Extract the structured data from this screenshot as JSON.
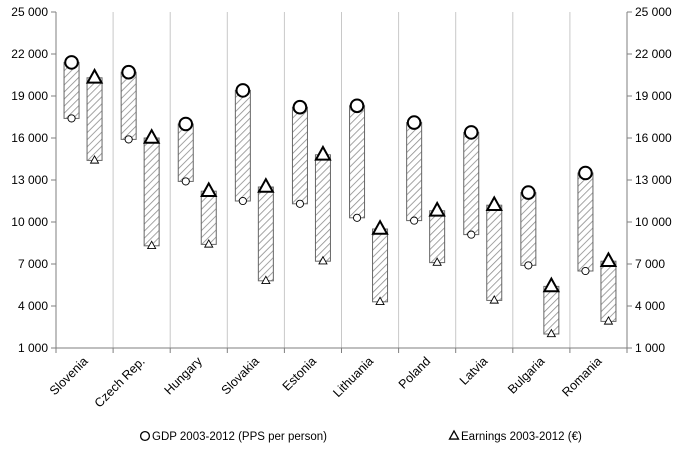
{
  "chart_data": {
    "type": "range-bar",
    "title": "",
    "xlabel": "",
    "ylabel": "",
    "ylim": [
      1000,
      25000
    ],
    "yticks": [
      "1 000",
      "4 000",
      "7 000",
      "10 000",
      "13 000",
      "16 000",
      "19 000",
      "22 000",
      "25 000"
    ],
    "ytick_values": [
      1000,
      4000,
      7000,
      10000,
      13000,
      16000,
      19000,
      22000,
      25000
    ],
    "grid": "vertical-separators",
    "legend_position": "bottom",
    "categories": [
      "Slovenia",
      "Czech Rep.",
      "Hungary",
      "Slovakia",
      "Estonia",
      "Lithuania",
      "Poland",
      "Latvia",
      "Bulgaria",
      "Romania"
    ],
    "series": [
      {
        "name": "GDP 2003-2012 (PPS per person)",
        "marker": "circle",
        "start": [
          17400,
          15900,
          12900,
          11500,
          11300,
          10300,
          10100,
          9100,
          6900,
          6500
        ],
        "end": [
          21400,
          20700,
          17000,
          19400,
          18200,
          18300,
          17100,
          16400,
          12100,
          13500
        ]
      },
      {
        "name": "Earnings 2003-2012 (€)",
        "marker": "triangle",
        "start": [
          14400,
          8300,
          8400,
          5800,
          7200,
          4300,
          7100,
          4400,
          2000,
          2900
        ],
        "end": [
          20300,
          16000,
          12200,
          12500,
          14800,
          9500,
          10800,
          11200,
          5400,
          7200
        ]
      }
    ]
  }
}
